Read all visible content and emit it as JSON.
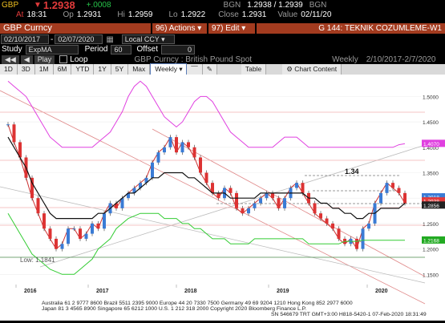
{
  "quote": {
    "ticker": "GBP",
    "last_label": "1.2938",
    "change": "+.0008",
    "source_top": "BGN",
    "bid_ask": "1.2938 / 1.2939",
    "source_top2": "BGN",
    "time_prefix": "At",
    "time": "18:31",
    "op_prefix": "Op",
    "open": "1.2931",
    "hi_prefix": "Hi",
    "high": "1.2959",
    "lo_prefix": "Lo",
    "low": "1.2922",
    "close_prefix": "Close",
    "close": "1.2931",
    "value_prefix": "Value",
    "value_date": "02/11/20"
  },
  "toolbar": {
    "security": "GBP Curncy",
    "actions_num": "96",
    "actions_label": "Actions",
    "edit_num": "97",
    "edit_label": "Edit",
    "title": "G 144: TEKNIK COZUMLEME-W1"
  },
  "range": {
    "start": "02/10/2017",
    "end": "02/07/2020",
    "currency": "Local CCY"
  },
  "study_row": {
    "study_label": "Study",
    "study_value": "ExpMA",
    "period_label": "Period",
    "period_value": "60",
    "offset_label": "Offset",
    "offset_value": "0"
  },
  "play_row": {
    "play": "Play",
    "loop": "Loop",
    "chart_title": "GBP Curncy : British Pound Spot",
    "frequency": "Weekly",
    "dates": "2/10/2017-2/7/2020"
  },
  "periods": [
    "1D",
    "3D",
    "1M",
    "6M",
    "YTD",
    "1Y",
    "5Y",
    "Max"
  ],
  "freq_select": "Weekly",
  "table_btn": "Table",
  "chart_content_btn": "Chart Content",
  "colors": {
    "header_bg": "#000000",
    "orange_tab": "#a33b1f",
    "price_red": "#e23b3b",
    "bb_magenta": "#e040e0",
    "ema_green": "#33cc33",
    "channel_red": "#d06060"
  },
  "chart_data": {
    "type": "line",
    "title": "GBP Curncy : British Pound Spot",
    "frequency": "Weekly",
    "x_labels": [
      "2016",
      "2017",
      "2018",
      "2019",
      "2020"
    ],
    "y_ticks": [
      "1.5000",
      "1.4500",
      "1.4000",
      "1.3500",
      "1.3000",
      "1.2500",
      "1.2000",
      "1.1500"
    ],
    "ylim": [
      1.13,
      1.54
    ],
    "annotations": {
      "peak_label": "1.34",
      "low_label": "Low: 1.1841"
    },
    "right_tags": [
      {
        "value": "1.4070",
        "color": "#e040e0"
      },
      {
        "value": "1.3018",
        "color": "#3a7bd5"
      },
      {
        "value": "1.2938",
        "color": "#e23b3b"
      },
      {
        "value": "1.2856",
        "color": "#222222"
      },
      {
        "value": "1.2168",
        "color": "#22aa22"
      }
    ],
    "series": [
      {
        "name": "price",
        "values": [
          1.445,
          1.41,
          1.38,
          1.34,
          1.3,
          1.27,
          1.24,
          1.22,
          1.2,
          1.21,
          1.24,
          1.24,
          1.22,
          1.23,
          1.25,
          1.24,
          1.27,
          1.29,
          1.28,
          1.3,
          1.31,
          1.32,
          1.33,
          1.34,
          1.37,
          1.39,
          1.4,
          1.42,
          1.39,
          1.41,
          1.4,
          1.38,
          1.35,
          1.33,
          1.31,
          1.3,
          1.32,
          1.31,
          1.28,
          1.27,
          1.28,
          1.29,
          1.3,
          1.31,
          1.3,
          1.28,
          1.3,
          1.32,
          1.33,
          1.31,
          1.29,
          1.27,
          1.26,
          1.25,
          1.24,
          1.22,
          1.21,
          1.22,
          1.2,
          1.24,
          1.25,
          1.29,
          1.31,
          1.33,
          1.32,
          1.31,
          1.29
        ]
      },
      {
        "name": "ema",
        "values": [
          1.42,
          1.4,
          1.38,
          1.36,
          1.33,
          1.31,
          1.29,
          1.27,
          1.26,
          1.26,
          1.26,
          1.26,
          1.26,
          1.26,
          1.26,
          1.27,
          1.27,
          1.28,
          1.29,
          1.3,
          1.31,
          1.31,
          1.32,
          1.33,
          1.34,
          1.34,
          1.35,
          1.35,
          1.35,
          1.35,
          1.34,
          1.34,
          1.33,
          1.32,
          1.31,
          1.31,
          1.31,
          1.3,
          1.3,
          1.3,
          1.3,
          1.3,
          1.31,
          1.31,
          1.31,
          1.31,
          1.31,
          1.31,
          1.31,
          1.31,
          1.3,
          1.3,
          1.29,
          1.29,
          1.28,
          1.28,
          1.27,
          1.27,
          1.26,
          1.26,
          1.27,
          1.27,
          1.28,
          1.28,
          1.28,
          1.28,
          1.29
        ]
      },
      {
        "name": "bb_upper",
        "values": [
          1.53,
          1.52,
          1.51,
          1.5,
          1.48,
          1.46,
          1.44,
          1.42,
          1.41,
          1.4,
          1.4,
          1.4,
          1.4,
          1.4,
          1.4,
          1.41,
          1.42,
          1.43,
          1.45,
          1.47,
          1.5,
          1.52,
          1.53,
          1.52,
          1.5,
          1.48,
          1.46,
          1.45,
          1.44,
          1.45,
          1.47,
          1.49,
          1.5,
          1.5,
          1.49,
          1.47,
          1.45,
          1.43,
          1.42,
          1.41,
          1.4,
          1.4,
          1.4,
          1.4,
          1.4,
          1.41,
          1.42,
          1.42,
          1.42,
          1.41,
          1.4,
          1.4,
          1.4,
          1.4,
          1.4,
          1.4,
          1.4,
          1.4,
          1.4,
          1.4,
          1.4,
          1.4,
          1.4,
          1.4,
          1.4,
          1.405,
          1.407
        ]
      },
      {
        "name": "bb_lower",
        "values": [
          1.27,
          1.25,
          1.23,
          1.21,
          1.19,
          1.18,
          1.17,
          1.16,
          1.155,
          1.15,
          1.15,
          1.15,
          1.16,
          1.17,
          1.18,
          1.2,
          1.21,
          1.22,
          1.24,
          1.25,
          1.26,
          1.265,
          1.27,
          1.27,
          1.27,
          1.27,
          1.26,
          1.26,
          1.26,
          1.25,
          1.25,
          1.24,
          1.24,
          1.23,
          1.22,
          1.22,
          1.22,
          1.21,
          1.21,
          1.21,
          1.21,
          1.22,
          1.22,
          1.22,
          1.22,
          1.22,
          1.22,
          1.22,
          1.22,
          1.22,
          1.21,
          1.21,
          1.21,
          1.21,
          1.21,
          1.21,
          1.215,
          1.215,
          1.215,
          1.217,
          1.217,
          1.217,
          1.217,
          1.217,
          1.217,
          1.217,
          1.217
        ]
      }
    ]
  },
  "footer": {
    "line1": "Australia 61 2 9777 8600 Brazil 5511 2395 9000 Europe 44 20 7330 7500 Germany 49 69 9204 1210 Hong Kong 852 2977 6000",
    "line2": "Japan 81 3 4565 8900        Singapore 65 6212 1000       U.S. 1 212 318 2000              Copyright 2020 Bloomberg Finance L.P.",
    "line3": "SN 546679 TRT  GMT+3:00 H818-5420-1 07-Feb-2020 18:31:49"
  }
}
